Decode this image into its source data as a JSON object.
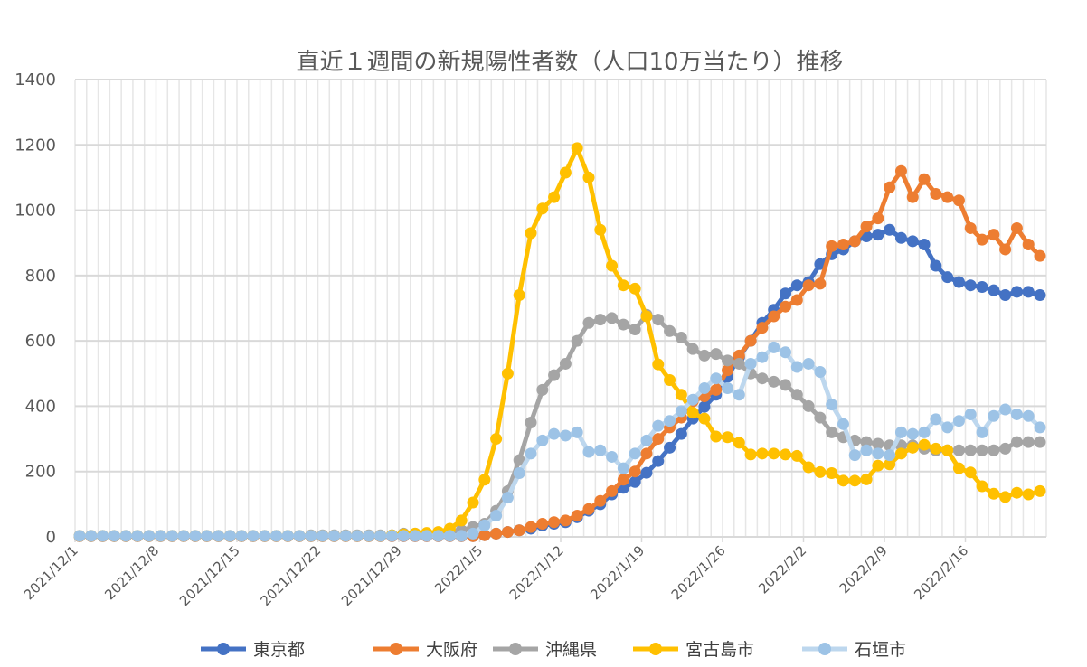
{
  "chart_data": {
    "type": "line",
    "title": "直近１週間の新規陽性者数（人口10万当たり）推移",
    "xlabel": "",
    "ylabel": "",
    "ylim": [
      0,
      1400
    ],
    "yticks": [
      "0",
      "200",
      "400",
      "600",
      "800",
      "1000",
      "1200",
      "1400"
    ],
    "x_start": "2021/12/1",
    "x_end": "2022/2/22",
    "x_step": "1 day",
    "xtick_labels": [
      "2021/12/1",
      "2021/12/8",
      "2021/12/15",
      "2021/12/22",
      "2021/12/29",
      "2022/1/5",
      "2022/1/12",
      "2022/1/19",
      "2022/1/26",
      "2022/2/2",
      "2022/2/9",
      "2022/2/16"
    ],
    "grid": true,
    "legend_position": "bottom",
    "series": [
      {
        "name": "東京都",
        "color": "#4472C4",
        "line_color": "#4472C4",
        "values": [
          2,
          2,
          2,
          2,
          2,
          2,
          2,
          2,
          2,
          2,
          2,
          2,
          2,
          2,
          2,
          2,
          2,
          2,
          2,
          2,
          2,
          2,
          2,
          2,
          2,
          2,
          2,
          2,
          2,
          2,
          2,
          2,
          2,
          2,
          2,
          5,
          10,
          15,
          20,
          25,
          35,
          40,
          45,
          60,
          80,
          100,
          130,
          150,
          168,
          196,
          232,
          273,
          315,
          362,
          398,
          435,
          490,
          550,
          600,
          655,
          695,
          745,
          770,
          780,
          835,
          865,
          880,
          905,
          920,
          925,
          940,
          915,
          905,
          895,
          830,
          795,
          780,
          770,
          765,
          755,
          740,
          750,
          750,
          740
        ]
      },
      {
        "name": "大阪府",
        "color": "#ED7D31",
        "line_color": "#ED7D31",
        "values": [
          2,
          2,
          2,
          2,
          2,
          2,
          2,
          2,
          2,
          2,
          2,
          2,
          2,
          2,
          2,
          2,
          2,
          2,
          2,
          2,
          2,
          2,
          2,
          2,
          2,
          2,
          2,
          2,
          2,
          2,
          2,
          2,
          2,
          2,
          2,
          5,
          10,
          15,
          20,
          30,
          40,
          45,
          50,
          65,
          85,
          110,
          140,
          175,
          200,
          255,
          300,
          335,
          365,
          415,
          430,
          450,
          510,
          555,
          600,
          640,
          675,
          705,
          725,
          770,
          775,
          890,
          895,
          905,
          950,
          975,
          1070,
          1120,
          1040,
          1095,
          1050,
          1040,
          1030,
          945,
          910,
          925,
          880,
          945,
          895,
          860
        ]
      },
      {
        "name": "沖縄県",
        "color": "#A5A5A5",
        "line_color": "#A5A5A5",
        "values": [
          3,
          3,
          3,
          3,
          3,
          3,
          3,
          3,
          3,
          3,
          3,
          3,
          3,
          3,
          3,
          3,
          3,
          3,
          3,
          3,
          5,
          5,
          5,
          5,
          5,
          5,
          5,
          5,
          10,
          10,
          10,
          10,
          15,
          20,
          30,
          40,
          80,
          140,
          235,
          350,
          450,
          495,
          530,
          600,
          655,
          665,
          670,
          650,
          635,
          680,
          665,
          630,
          610,
          575,
          555,
          560,
          540,
          530,
          500,
          485,
          475,
          465,
          435,
          400,
          365,
          320,
          305,
          295,
          290,
          285,
          280,
          280,
          280,
          270,
          265,
          265,
          265,
          265,
          265,
          265,
          270,
          290,
          290,
          290
        ]
      },
      {
        "name": "宮古島市",
        "color": "#FFC000",
        "line_color": "#FFC000",
        "values": [
          3,
          3,
          3,
          3,
          3,
          3,
          3,
          3,
          3,
          3,
          3,
          3,
          3,
          3,
          3,
          3,
          3,
          3,
          3,
          3,
          3,
          3,
          3,
          3,
          3,
          3,
          3,
          5,
          8,
          10,
          12,
          15,
          25,
          50,
          105,
          175,
          300,
          500,
          740,
          930,
          1005,
          1040,
          1115,
          1190,
          1100,
          940,
          830,
          770,
          760,
          675,
          528,
          480,
          435,
          380,
          362,
          307,
          305,
          288,
          252,
          255,
          255,
          252,
          248,
          213,
          198,
          195,
          172,
          172,
          176,
          218,
          222,
          255,
          273,
          282,
          270,
          265,
          210,
          197,
          155,
          132,
          122,
          135,
          130,
          140
        ]
      },
      {
        "name": "石垣市",
        "color": "#9DC3E6",
        "line_color": "#BDD7EE",
        "values": [
          3,
          3,
          3,
          3,
          3,
          3,
          3,
          3,
          3,
          3,
          3,
          3,
          3,
          3,
          3,
          3,
          3,
          3,
          3,
          3,
          3,
          3,
          3,
          3,
          3,
          3,
          3,
          3,
          3,
          3,
          3,
          3,
          3,
          3,
          10,
          35,
          65,
          120,
          195,
          255,
          295,
          315,
          310,
          320,
          260,
          265,
          245,
          210,
          255,
          295,
          340,
          355,
          385,
          420,
          455,
          485,
          455,
          435,
          530,
          550,
          580,
          565,
          520,
          530,
          505,
          405,
          345,
          250,
          265,
          255,
          250,
          320,
          315,
          320,
          360,
          335,
          355,
          375,
          320,
          370,
          390,
          375,
          370,
          335
        ]
      }
    ]
  }
}
